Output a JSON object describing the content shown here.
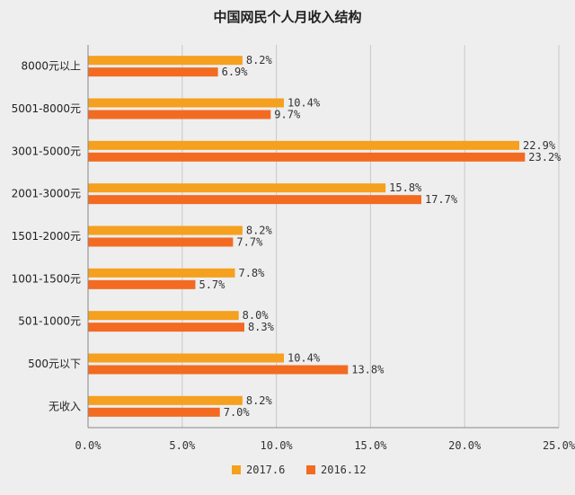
{
  "chart_data": {
    "type": "bar",
    "orientation": "horizontal",
    "title": "中国网民个人月收入结构",
    "categories": [
      "8000元以上",
      "5001-8000元",
      "3001-5000元",
      "2001-3000元",
      "1501-2000元",
      "1001-1500元",
      "501-1000元",
      "500元以下",
      "无收入"
    ],
    "series": [
      {
        "name": "2017.6",
        "color": "#f5a01e",
        "values": [
          8.2,
          10.4,
          22.9,
          15.8,
          8.2,
          7.8,
          8.0,
          10.4,
          8.2
        ]
      },
      {
        "name": "2016.12",
        "color": "#f26b21",
        "values": [
          6.9,
          9.7,
          23.2,
          17.7,
          7.7,
          5.7,
          8.3,
          13.8,
          7.0
        ]
      }
    ],
    "xlim": [
      0,
      25
    ],
    "xticks": [
      0,
      5,
      10,
      15,
      20,
      25
    ],
    "xtick_labels": [
      "0.0%",
      "5.0%",
      "10.0%",
      "15.0%",
      "20.0%",
      "25.0%"
    ],
    "value_suffix": "%",
    "value_decimals": 1,
    "grid": true,
    "legend_position": "bottom"
  }
}
